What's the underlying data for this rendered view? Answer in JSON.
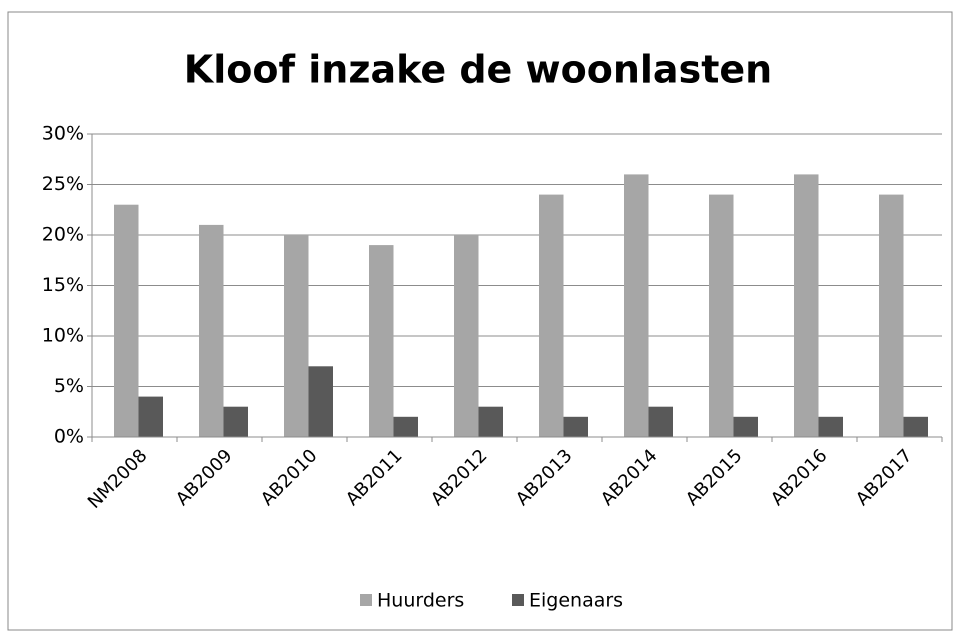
{
  "chart_data": {
    "type": "bar",
    "title": "Kloof inzake de woonlasten",
    "categories": [
      "NM2008",
      "AB2009",
      "AB2010",
      "AB2011",
      "AB2012",
      "AB2013",
      "AB2014",
      "AB2015",
      "AB2016",
      "AB2017"
    ],
    "series": [
      {
        "name": "Huurders",
        "color": "#a6a6a6",
        "values": [
          23,
          21,
          20,
          19,
          20,
          24,
          26,
          24,
          26,
          24
        ]
      },
      {
        "name": "Eigenaars",
        "color": "#595959",
        "values": [
          4,
          3,
          7,
          2,
          3,
          2,
          3,
          2,
          2,
          2
        ]
      }
    ],
    "ylim": [
      0,
      30
    ],
    "yticks": [
      {
        "value": 0,
        "label": "0%"
      },
      {
        "value": 5,
        "label": "5%"
      },
      {
        "value": 10,
        "label": "10%"
      },
      {
        "value": 15,
        "label": "15%"
      },
      {
        "value": 20,
        "label": "20%"
      },
      {
        "value": 25,
        "label": "25%"
      },
      {
        "value": 30,
        "label": "30%"
      }
    ],
    "grid": true,
    "legend": "bottom"
  }
}
